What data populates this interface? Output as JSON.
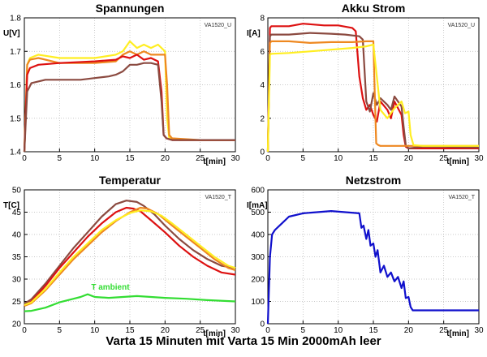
{
  "caption": "Varta 15 Minuten mit Varta 15 Min 2000mAh leer",
  "colors": {
    "red": "#dd1111",
    "orange": "#ee8820",
    "yellow": "#ffee22",
    "brown": "#8b4a40",
    "green": "#33dd33",
    "blue": "#1010cc"
  },
  "chart_data": [
    {
      "type": "line",
      "title": "Spannungen",
      "tag": "VA1520_U",
      "ylabel": "U[V]",
      "xlabel": "t[min]",
      "xlim": [
        0,
        30
      ],
      "ylim": [
        1.4,
        1.8
      ],
      "xticks": [
        "0",
        "5",
        "10",
        "15",
        "20",
        "25",
        "30"
      ],
      "yticks": [
        "1.4",
        "1.5",
        "1.6",
        "1.7",
        "1.8"
      ],
      "grid": true,
      "series": [
        {
          "color": "#ffee22",
          "x": [
            0,
            0.4,
            0.8,
            2,
            5,
            10,
            13,
            14,
            15,
            16,
            17,
            18,
            19,
            20,
            20.3,
            20.6,
            21,
            22,
            25,
            30
          ],
          "y": [
            1.4,
            1.66,
            1.68,
            1.69,
            1.68,
            1.68,
            1.69,
            1.7,
            1.73,
            1.71,
            1.72,
            1.71,
            1.72,
            1.7,
            1.5,
            1.44,
            1.44,
            1.435,
            1.435,
            1.435
          ]
        },
        {
          "color": "#ee8820",
          "x": [
            0,
            0.4,
            0.8,
            2,
            5,
            10,
            13,
            14,
            15,
            16,
            17,
            18,
            19,
            20,
            20.3,
            20.6,
            21,
            25,
            30
          ],
          "y": [
            1.4,
            1.66,
            1.675,
            1.68,
            1.665,
            1.665,
            1.67,
            1.69,
            1.7,
            1.69,
            1.7,
            1.69,
            1.69,
            1.69,
            1.6,
            1.45,
            1.44,
            1.435,
            1.435
          ]
        },
        {
          "color": "#dd1111",
          "x": [
            0,
            0.4,
            0.8,
            2,
            5,
            10,
            13,
            13.5,
            14,
            15,
            16,
            17,
            18,
            19,
            19.5,
            19.8,
            20.2,
            21,
            25,
            30
          ],
          "y": [
            1.4,
            1.63,
            1.65,
            1.66,
            1.665,
            1.67,
            1.675,
            1.68,
            1.685,
            1.68,
            1.69,
            1.675,
            1.68,
            1.67,
            1.58,
            1.45,
            1.44,
            1.435,
            1.435,
            1.435
          ]
        },
        {
          "color": "#8b4a40",
          "x": [
            0,
            0.4,
            1,
            3,
            5,
            8,
            10,
            12,
            13,
            14,
            15,
            16,
            17,
            18,
            19,
            19.5,
            19.8,
            20.2,
            21,
            25,
            30
          ],
          "y": [
            1.4,
            1.58,
            1.605,
            1.615,
            1.615,
            1.615,
            1.62,
            1.625,
            1.63,
            1.64,
            1.66,
            1.66,
            1.665,
            1.665,
            1.66,
            1.55,
            1.45,
            1.44,
            1.435,
            1.435,
            1.435
          ]
        }
      ]
    },
    {
      "type": "line",
      "title": "Akku Strom",
      "tag": "VA1520_U",
      "ylabel": "I[A]",
      "xlabel": "t[min]",
      "xlim": [
        0,
        30
      ],
      "ylim": [
        0,
        8
      ],
      "xticks": [
        "0",
        "5",
        "10",
        "15",
        "20",
        "25",
        "30"
      ],
      "yticks": [
        "0",
        "2",
        "4",
        "6",
        "8"
      ],
      "grid": true,
      "series": [
        {
          "color": "#dd1111",
          "x": [
            0,
            0.3,
            0.5,
            3,
            5,
            8,
            10,
            12,
            12.5,
            13,
            13.5,
            14,
            14.5,
            15,
            15.5,
            16,
            17,
            17.5,
            18,
            19,
            19.3,
            19.6,
            20,
            21,
            25,
            30
          ],
          "y": [
            0,
            7.4,
            7.5,
            7.5,
            7.65,
            7.55,
            7.55,
            7.4,
            7.2,
            4.5,
            3.2,
            2.5,
            2.8,
            2.2,
            1.8,
            3.0,
            2.5,
            2.0,
            3.0,
            2.2,
            1.0,
            0.3,
            0.2,
            0.2,
            0.2,
            0.2
          ]
        },
        {
          "color": "#8b4a40",
          "x": [
            0,
            0.3,
            0.5,
            3,
            6,
            9,
            11,
            13,
            13.5,
            14,
            14.5,
            15,
            15.5,
            16,
            17,
            17.5,
            18,
            19,
            19.3,
            19.6,
            20,
            22,
            25,
            30
          ],
          "y": [
            0,
            6.9,
            7.0,
            7.0,
            7.1,
            7.05,
            7.0,
            6.9,
            6.7,
            3.0,
            2.4,
            3.5,
            2.8,
            3.2,
            2.8,
            2.5,
            3.3,
            2.7,
            1.5,
            0.4,
            0.2,
            0.3,
            0.3,
            0.25
          ]
        },
        {
          "color": "#ee8820",
          "x": [
            0,
            0.3,
            0.5,
            3,
            6,
            9,
            12,
            14,
            15,
            15.2,
            15.4,
            15.7,
            16,
            20,
            25,
            30
          ],
          "y": [
            0,
            6.5,
            6.6,
            6.6,
            6.5,
            6.55,
            6.55,
            6.6,
            6.6,
            3.5,
            0.5,
            0.4,
            0.35,
            0.35,
            0.35,
            0.35
          ]
        },
        {
          "color": "#ffee22",
          "x": [
            0,
            0.3,
            0.5,
            3,
            6,
            9,
            12,
            14,
            15,
            16,
            17,
            18,
            19,
            19.5,
            20,
            20.3,
            20.7,
            22,
            25,
            30
          ],
          "y": [
            0,
            5.8,
            5.85,
            5.9,
            6.0,
            6.1,
            6.2,
            6.3,
            6.4,
            2.5,
            2.0,
            2.6,
            3.0,
            2.3,
            2.4,
            1.0,
            0.4,
            0.35,
            0.35,
            0.35
          ]
        }
      ]
    },
    {
      "type": "line",
      "title": "Temperatur",
      "tag": "VA1520_T",
      "ylabel": "T[C]",
      "xlabel": "t[min]",
      "xlim": [
        0,
        30
      ],
      "ylim": [
        20,
        50
      ],
      "xticks": [
        "0",
        "5",
        "10",
        "15",
        "20",
        "25",
        "30"
      ],
      "yticks": [
        "20",
        "25",
        "30",
        "35",
        "40",
        "45",
        "50"
      ],
      "grid": true,
      "annotation": {
        "text": "T ambient",
        "x": 9.5,
        "y": 27.6,
        "color": "#33dd33"
      },
      "series": [
        {
          "color": "#33dd33",
          "x": [
            0,
            1,
            3,
            5,
            7,
            8,
            9,
            10,
            12,
            14,
            16,
            18,
            20,
            23,
            26,
            30
          ],
          "y": [
            22.8,
            22.9,
            23.6,
            24.8,
            25.6,
            26.0,
            26.6,
            26.0,
            25.8,
            26.0,
            26.2,
            26.0,
            25.8,
            25.6,
            25.3,
            25.0
          ]
        },
        {
          "color": "#8b4a40",
          "x": [
            0,
            1,
            3,
            5,
            7,
            9,
            11,
            13,
            14.5,
            16,
            17,
            18.5,
            20,
            22,
            24,
            26,
            28,
            30
          ],
          "y": [
            24.5,
            25.5,
            29,
            33,
            37,
            40.5,
            44,
            46.8,
            47.6,
            47.3,
            46.4,
            44.5,
            42,
            39,
            36.5,
            34.5,
            33,
            32.5
          ]
        },
        {
          "color": "#dd1111",
          "x": [
            0,
            1,
            3,
            5,
            7,
            9,
            11,
            13,
            14.5,
            15.5,
            16.5,
            18,
            20,
            22,
            24,
            26,
            28,
            30
          ],
          "y": [
            24,
            25,
            28.5,
            32.5,
            36,
            39.5,
            42.5,
            45,
            46,
            45.8,
            45.2,
            43.2,
            40.5,
            37.5,
            35,
            33,
            31.5,
            31
          ]
        },
        {
          "color": "#ee8820",
          "x": [
            0,
            1,
            3,
            5,
            7,
            9,
            11,
            13,
            15,
            16.5,
            17.5,
            19,
            21,
            23,
            25,
            27,
            29,
            30
          ],
          "y": [
            24,
            24.6,
            27.5,
            31,
            34.5,
            37.5,
            40.5,
            43,
            45,
            46,
            45.8,
            44.6,
            42,
            39.5,
            37,
            34.5,
            32.5,
            32
          ]
        },
        {
          "color": "#ffee22",
          "x": [
            0,
            1,
            3,
            5,
            7,
            9,
            11,
            13,
            15,
            16.5,
            18,
            19.5,
            21,
            23,
            25,
            27,
            29,
            30
          ],
          "y": [
            24.2,
            24.8,
            27.8,
            31.5,
            35,
            38,
            41,
            43.2,
            44.8,
            45.4,
            45.2,
            44.2,
            42.5,
            40,
            37.5,
            35,
            33,
            32.5
          ]
        }
      ]
    },
    {
      "type": "line",
      "title": "Netzstrom",
      "tag": "VA1520_T",
      "ylabel": "I[mA]",
      "xlabel": "t[min]",
      "xlim": [
        0,
        30
      ],
      "ylim": [
        0,
        600
      ],
      "xticks": [
        "0",
        "5",
        "10",
        "15",
        "20",
        "25",
        "30"
      ],
      "yticks": [
        "0",
        "100",
        "200",
        "300",
        "400",
        "500",
        "600"
      ],
      "grid": true,
      "series": [
        {
          "color": "#1010cc",
          "x": [
            0,
            0.3,
            0.6,
            1,
            2,
            3,
            5,
            7,
            9,
            11,
            13,
            13.3,
            13.6,
            14,
            14.3,
            14.6,
            15,
            15.3,
            15.6,
            16,
            16.5,
            17,
            17.5,
            18,
            18.5,
            19,
            19.3,
            19.6,
            20,
            20.3,
            20.6,
            21,
            23,
            25,
            27,
            30
          ],
          "y": [
            0,
            300,
            400,
            420,
            450,
            480,
            495,
            500,
            505,
            500,
            495,
            430,
            440,
            380,
            420,
            350,
            360,
            300,
            330,
            230,
            260,
            210,
            230,
            190,
            210,
            160,
            190,
            115,
            120,
            75,
            60,
            60,
            60,
            60,
            60,
            60
          ]
        }
      ]
    }
  ]
}
